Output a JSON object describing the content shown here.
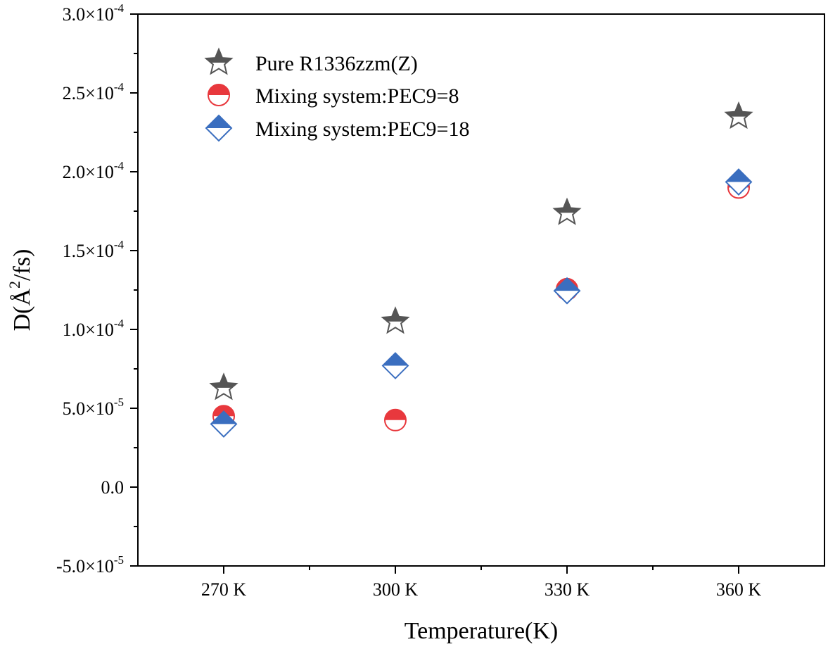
{
  "chart_data": {
    "type": "scatter",
    "xlabel": "Temperature(K)",
    "ylabel_parts": {
      "prefix": "D(Å",
      "sup": "2",
      "suffix": "/fs)"
    },
    "categories": [
      "270 K",
      "300 K",
      "330 K",
      "360 K"
    ],
    "ylim": [
      -5e-05,
      0.0003
    ],
    "y_major_ticks": [
      {
        "value": -5e-05,
        "mant": "-5.0×10",
        "exp": "-5"
      },
      {
        "value": 0.0,
        "mant": "0.0",
        "exp": ""
      },
      {
        "value": 5e-05,
        "mant": "5.0×10",
        "exp": "-5"
      },
      {
        "value": 0.0001,
        "mant": "1.0×10",
        "exp": "-4"
      },
      {
        "value": 0.00015,
        "mant": "1.5×10",
        "exp": "-4"
      },
      {
        "value": 0.0002,
        "mant": "2.0×10",
        "exp": "-4"
      },
      {
        "value": 0.00025,
        "mant": "2.5×10",
        "exp": "-4"
      },
      {
        "value": 0.0003,
        "mant": "3.0×10",
        "exp": "-4"
      }
    ],
    "legend_position": "top-left",
    "series": [
      {
        "name": "Pure R1336zzm(Z)",
        "marker": "star",
        "color": "#555555",
        "values": [
          6.3e-05,
          0.000105,
          0.000174,
          0.000235
        ]
      },
      {
        "name": "Mixing system:PEC9=8",
        "marker": "half-circle",
        "color": "#e8383d",
        "values": [
          4.5e-05,
          4.25e-05,
          0.0001255,
          0.00019
        ]
      },
      {
        "name": "Mixing system:PEC9=18",
        "marker": "half-diamond",
        "color": "#3a6ebf",
        "values": [
          4e-05,
          7.7e-05,
          0.0001245,
          0.0001935
        ]
      }
    ]
  }
}
